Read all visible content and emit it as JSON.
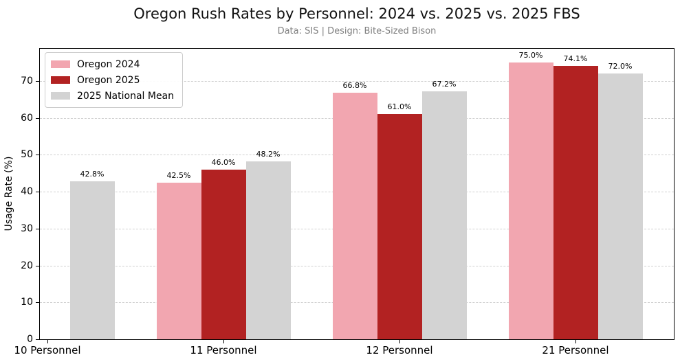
{
  "title": "Oregon Rush Rates by Personnel: 2024 vs. 2025 vs. 2025 FBS",
  "subtitle": "Data: SIS | Design: Bite-Sized Bison",
  "colors": {
    "oregon_2024": "#F2A6B0",
    "oregon_2025": "#B22222",
    "national_mean": "#D3D3D3",
    "gridline": "#D0D0D0",
    "subtitle_text": "#7F7F7F",
    "axis": "#000000",
    "background": "#FFFFFF"
  },
  "chart_data": {
    "type": "bar",
    "title": "Oregon Rush Rates by Personnel: 2024 vs. 2025 vs. 2025 FBS",
    "subtitle": "Data: SIS | Design: Bite-Sized Bison",
    "xlabel": "",
    "ylabel": "Usage Rate (%)",
    "categories": [
      "10 Personnel",
      "11 Personnel",
      "12 Personnel",
      "21 Personnel"
    ],
    "series": [
      {
        "name": "Oregon 2024",
        "color": "#F2A6B0",
        "values": [
          null,
          42.5,
          66.8,
          75.0
        ],
        "labels": [
          "",
          "42.5%",
          "66.8%",
          "75.0%"
        ]
      },
      {
        "name": "Oregon 2025",
        "color": "#B22222",
        "values": [
          null,
          46.0,
          61.0,
          74.1
        ],
        "labels": [
          "",
          "46.0%",
          "61.0%",
          "74.1%"
        ]
      },
      {
        "name": "2025 National Mean",
        "color": "#D3D3D3",
        "values": [
          42.8,
          48.2,
          67.2,
          72.0
        ],
        "labels": [
          "42.8%",
          "48.2%",
          "67.2%",
          "72.0%"
        ]
      }
    ],
    "ylim": [
      0,
      78.7
    ],
    "yticks": [
      0,
      10,
      20,
      30,
      40,
      50,
      60,
      70
    ],
    "grid": {
      "axis": "y",
      "style": "dashed",
      "color": "#D0D0D0"
    },
    "legend": {
      "position": "upper-left"
    }
  }
}
